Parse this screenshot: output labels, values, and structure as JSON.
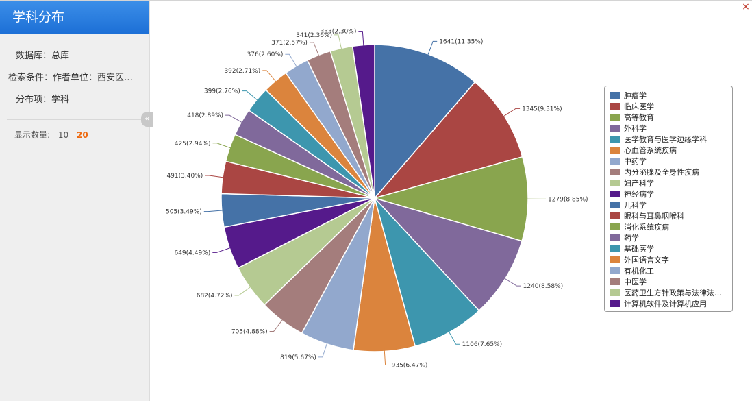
{
  "panel": {
    "title": "学科分布",
    "database_label": "数据库：",
    "database_value": "总库",
    "condition_label": "检索条件：",
    "condition_value": "作者单位：西安医学院",
    "item_label": "分布项：",
    "item_value": "学科",
    "count_label": "显示数量:",
    "count_options": [
      "10",
      "20"
    ],
    "count_selected": "20"
  },
  "controls": {
    "collapse_glyph": "«",
    "close_glyph": "×"
  },
  "icons": {
    "collapse": "double-chevron-left-icon",
    "close": "close-icon"
  },
  "colors": {
    "title_bar": "#2a80e2",
    "selected_count": "#ee6a10",
    "series": [
      "#4572A7",
      "#AA4643",
      "#89A54E",
      "#80699B",
      "#3D96AE",
      "#DB843D",
      "#92A8CD",
      "#A47D7C",
      "#B5CA92",
      "#551A8B"
    ]
  },
  "chart_data": {
    "type": "pie",
    "legend_position": "right",
    "slices": [
      {
        "name": "肿瘤学",
        "value": 1641,
        "label": "1641(11.35%)"
      },
      {
        "name": "临床医学",
        "value": 1345,
        "label": "1345(9.31%)"
      },
      {
        "name": "高等教育",
        "value": 1279,
        "label": "1279(8.85%)"
      },
      {
        "name": "外科学",
        "value": 1240,
        "label": "1240(8.58%)"
      },
      {
        "name": "医学教育与医学边缘学科",
        "value": 1106,
        "label": "1106(7.65%)"
      },
      {
        "name": "心血管系统疾病",
        "value": 935,
        "label": "935(6.47%)"
      },
      {
        "name": "中药学",
        "value": 819,
        "label": "819(5.67%)"
      },
      {
        "name": "内分泌腺及全身性疾病",
        "value": 705,
        "label": "705(4.88%)"
      },
      {
        "name": "妇产科学",
        "value": 682,
        "label": "682(4.72%)"
      },
      {
        "name": "神经病学",
        "value": 649,
        "label": "649(4.49%)"
      },
      {
        "name": "儿科学",
        "value": 505,
        "label": "505(3.49%)"
      },
      {
        "name": "眼科与耳鼻咽喉科",
        "value": 491,
        "label": "491(3.40%)"
      },
      {
        "name": "消化系统疾病",
        "value": 425,
        "label": "425(2.94%)"
      },
      {
        "name": "药学",
        "value": 418,
        "label": "418(2.89%)"
      },
      {
        "name": "基础医学",
        "value": 399,
        "label": "399(2.76%)"
      },
      {
        "name": "外国语言文字",
        "value": 392,
        "label": "392(2.71%)"
      },
      {
        "name": "有机化工",
        "value": 376,
        "label": "376(2.60%)"
      },
      {
        "name": "中医学",
        "value": 371,
        "label": "371(2.57%)"
      },
      {
        "name": "医药卫生方针政策与法律法规研究",
        "value": 341,
        "label": "341(2.36%)"
      },
      {
        "name": "计算机软件及计算机应用",
        "value": 333,
        "label": "333(2.30%)"
      }
    ]
  }
}
